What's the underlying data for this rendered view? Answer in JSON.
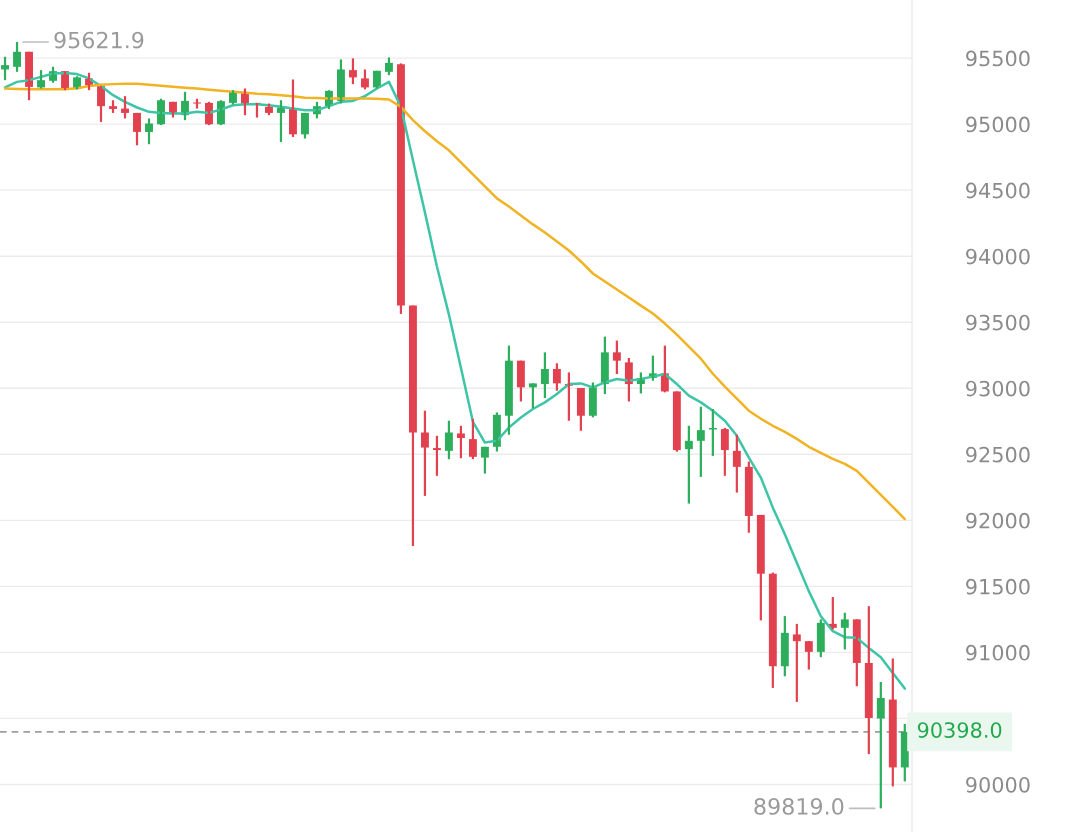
{
  "chart_data": {
    "type": "candlestick",
    "categories": [
      null,
      null,
      null,
      null,
      null,
      null,
      null,
      null,
      null,
      null,
      null,
      null,
      null,
      null,
      null,
      null,
      null,
      null,
      null,
      null,
      null,
      null,
      null,
      null,
      null,
      null,
      null,
      null,
      null,
      null,
      null,
      null,
      null,
      null,
      null,
      null,
      null,
      null,
      null,
      null,
      null,
      null,
      null,
      null,
      null,
      null,
      null,
      null,
      null,
      null,
      null,
      null,
      null,
      null,
      null,
      null,
      null,
      null,
      null,
      null,
      null,
      null,
      null,
      null,
      null,
      null,
      null,
      null,
      null,
      null,
      null,
      null,
      null,
      null,
      null,
      null
    ],
    "ohlc": [
      [
        95414,
        95510,
        95333,
        95447
      ],
      [
        95434,
        95621.9,
        95396,
        95548
      ],
      [
        95548,
        95548,
        95181,
        95282
      ],
      [
        95278,
        95409,
        95270,
        95333
      ],
      [
        95328,
        95434,
        95313,
        95401
      ],
      [
        95401,
        95401,
        95257,
        95270
      ],
      [
        95270,
        95363,
        95263,
        95354
      ],
      [
        95346,
        95389,
        95257,
        95295
      ],
      [
        95288,
        95288,
        95017,
        95136
      ],
      [
        95136,
        95181,
        95085,
        95115
      ],
      [
        95118,
        95212,
        95043,
        95085
      ],
      [
        95085,
        95085,
        94840,
        94941
      ],
      [
        94941,
        95043,
        94848,
        95005
      ],
      [
        94999,
        95192,
        94993,
        95181
      ],
      [
        95169,
        95169,
        95050,
        95080
      ],
      [
        95068,
        95244,
        95030,
        95176
      ],
      [
        95161,
        95192,
        95118,
        95156
      ],
      [
        95161,
        95169,
        94993,
        94999
      ],
      [
        94999,
        95181,
        94993,
        95174
      ],
      [
        95161,
        95257,
        95150,
        95244
      ],
      [
        95244,
        95270,
        95068,
        95156
      ],
      [
        95161,
        95161,
        95050,
        95151
      ],
      [
        95131,
        95156,
        95068,
        95085
      ],
      [
        95085,
        95181,
        94865,
        95126
      ],
      [
        95118,
        95338,
        94903,
        94923
      ],
      [
        94923,
        95085,
        94891,
        95085
      ],
      [
        95075,
        95169,
        95043,
        95136
      ],
      [
        95136,
        95257,
        95115,
        95252
      ],
      [
        95176,
        95490,
        95156,
        95414
      ],
      [
        95409,
        95498,
        95303,
        95354
      ],
      [
        95346,
        95414,
        95263,
        95278
      ],
      [
        95278,
        95404,
        95270,
        95404
      ],
      [
        95396,
        95505,
        95371,
        95464
      ],
      [
        95454,
        95460,
        93563,
        93626
      ],
      [
        93626,
        93626,
        91806,
        92665
      ],
      [
        92665,
        92830,
        92185,
        92551
      ],
      [
        92547,
        92640,
        92337,
        92532
      ],
      [
        92526,
        92754,
        92463,
        92665
      ],
      [
        92658,
        92716,
        92470,
        92623
      ],
      [
        92615,
        92767,
        92463,
        92481
      ],
      [
        92475,
        92557,
        92354,
        92557
      ],
      [
        92557,
        92817,
        92521,
        92799
      ],
      [
        92792,
        93323,
        92648,
        93209
      ],
      [
        93209,
        93209,
        92900,
        93007
      ],
      [
        93007,
        93037,
        92850,
        93037
      ],
      [
        93032,
        93272,
        92926,
        93146
      ],
      [
        93146,
        93189,
        92981,
        93037
      ],
      [
        93032,
        93120,
        92754,
        93019
      ],
      [
        93002,
        93002,
        92678,
        92792
      ],
      [
        92792,
        93044,
        92780,
        93007
      ],
      [
        93032,
        93391,
        92956,
        93272
      ],
      [
        93272,
        93361,
        93108,
        93209
      ],
      [
        93196,
        93229,
        92900,
        93032
      ],
      [
        93032,
        93120,
        92961,
        93078
      ],
      [
        93078,
        93247,
        93057,
        93113
      ],
      [
        93113,
        93323,
        92969,
        92976
      ],
      [
        92976,
        92976,
        92520,
        92532
      ],
      [
        92539,
        92716,
        92127,
        92602
      ],
      [
        92602,
        92860,
        92329,
        92683
      ],
      [
        92688,
        92843,
        92488,
        92699
      ],
      [
        92691,
        92700,
        92337,
        92532
      ],
      [
        92526,
        92648,
        92210,
        92405
      ],
      [
        92405,
        92445,
        91906,
        92033
      ],
      [
        92041,
        92041,
        91242,
        91596
      ],
      [
        91596,
        91604,
        90731,
        90895
      ],
      [
        90895,
        91275,
        90819,
        91148
      ],
      [
        91136,
        91216,
        90625,
        91085
      ],
      [
        91085,
        91085,
        90870,
        91004
      ],
      [
        91004,
        91250,
        90964,
        91224
      ],
      [
        91216,
        91419,
        91174,
        91186
      ],
      [
        91186,
        91300,
        91022,
        91250
      ],
      [
        91250,
        91250,
        90744,
        90920
      ],
      [
        90920,
        91350,
        90230,
        90503
      ],
      [
        90499,
        90776,
        89819.0,
        90655
      ],
      [
        90643,
        90954,
        89985,
        90129
      ],
      [
        90129,
        90458,
        90023,
        90398.0
      ]
    ],
    "colors": [
      "#2dae5c",
      "#2dae5c",
      "#e2414f",
      "#2dae5c",
      "#2dae5c",
      "#e2414f",
      "#2dae5c",
      "#e2414f",
      "#e2414f",
      "#e2414f",
      "#e2414f",
      "#e2414f",
      "#2dae5c",
      "#2dae5c",
      "#e2414f",
      "#2dae5c",
      "#e2414f",
      "#e2414f",
      "#2dae5c",
      "#2dae5c",
      "#e2414f",
      "#e2414f",
      "#e2414f",
      "#2dae5c",
      "#e2414f",
      "#2dae5c",
      "#2dae5c",
      "#2dae5c",
      "#2dae5c",
      "#e2414f",
      "#e2414f",
      "#2dae5c",
      "#2dae5c",
      "#e2414f",
      "#e2414f",
      "#e2414f",
      "#e2414f",
      "#2dae5c",
      "#e2414f",
      "#e2414f",
      "#2dae5c",
      "#2dae5c",
      "#2dae5c",
      "#e2414f",
      "#2dae5c",
      "#2dae5c",
      "#e2414f",
      "#e2414f",
      "#e2414f",
      "#2dae5c",
      "#2dae5c",
      "#e2414f",
      "#e2414f",
      "#2dae5c",
      "#2dae5c",
      "#e2414f",
      "#e2414f",
      "#2dae5c",
      "#2dae5c",
      "#2dae5c",
      "#e2414f",
      "#e2414f",
      "#e2414f",
      "#e2414f",
      "#e2414f",
      "#2dae5c",
      "#e2414f",
      "#e2414f",
      "#2dae5c",
      "#e2414f",
      "#2dae5c",
      "#e2414f",
      "#e2414f",
      "#2dae5c",
      "#e2414f",
      "#2dae5c"
    ],
    "series": [
      {
        "type": "line",
        "color": "#3ec4a6",
        "values": [
          95278,
          95320,
          95333,
          95358,
          95384,
          95388,
          95379,
          95346,
          95288,
          95219,
          95169,
          95126,
          95093,
          95085,
          95081,
          95081,
          95093,
          95085,
          95111,
          95143,
          95151,
          95151,
          95143,
          95131,
          95118,
          95106,
          95106,
          95136,
          95169,
          95176,
          95212,
          95270,
          95320,
          95131,
          94726,
          94332,
          93922,
          93558,
          93156,
          92746,
          92589,
          92602,
          92703,
          92779,
          92843,
          92893,
          92956,
          93032,
          93037,
          93007,
          93044,
          93070,
          93057,
          93070,
          93088,
          93108,
          93032,
          92944,
          92893,
          92830,
          92754,
          92640,
          92475,
          92324,
          92096,
          91894,
          91679,
          91464,
          91274,
          91161,
          91115,
          91110,
          91034,
          90964,
          90844,
          90726
        ]
      },
      {
        "type": "line",
        "color": "#f0b323",
        "values": [
          95270,
          95267,
          95265,
          95265,
          95265,
          95265,
          95272,
          95288,
          95299,
          95303,
          95305,
          95305,
          95299,
          95291,
          95284,
          95276,
          95269,
          95261,
          95253,
          95246,
          95238,
          95231,
          95227,
          95219,
          95212,
          95200,
          95197,
          95194,
          95194,
          95194,
          95194,
          95193,
          95187,
          95131,
          95030,
          94946,
          94870,
          94802,
          94711,
          94620,
          94529,
          94438,
          94377,
          94309,
          94241,
          94180,
          94112,
          94043,
          93960,
          93869,
          93808,
          93748,
          93687,
          93626,
          93566,
          93490,
          93406,
          93315,
          93224,
          93110,
          93012,
          92921,
          92830,
          92769,
          92716,
          92670,
          92617,
          92557,
          92511,
          92466,
          92428,
          92375,
          92284,
          92193,
          92102,
          92010
        ]
      }
    ],
    "ylim": [
      89640,
      95940
    ],
    "yticks": [
      90000,
      {
        "value": 90500,
        "label": null
      },
      91000,
      91500,
      92000,
      92500,
      93000,
      93500,
      94000,
      94500,
      95000,
      95500
    ],
    "grid": "y",
    "ref_lines": [
      {
        "axis": "y",
        "value": 90398.0,
        "label": "90398.0",
        "color": "#9e9e9e",
        "line_style": "dashed"
      }
    ],
    "annotations": [
      "95621.9",
      "89819.0"
    ]
  }
}
